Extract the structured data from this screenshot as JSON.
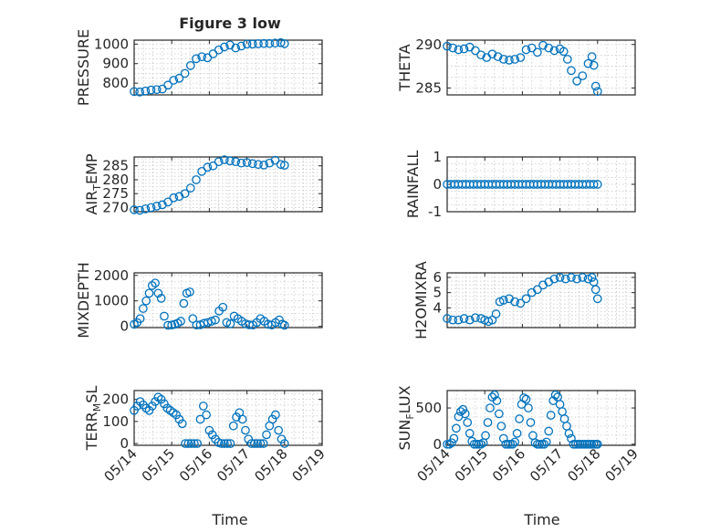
{
  "figure": {
    "title": "Figure 3 low",
    "xlabel": "Time",
    "x_tick_labels": [
      "05/14",
      "05/15",
      "05/16",
      "05/17",
      "05/18",
      "05/19"
    ]
  },
  "colors": {
    "marker": "#0072bd",
    "axes": "#262626",
    "grid": "#c8c8c8"
  },
  "chart_data": [
    {
      "type": "scatter",
      "ylabel": "PRESSURE",
      "ylim": [
        740,
        1020
      ],
      "yticks": [
        800,
        900,
        1000
      ],
      "ytick_labels": [
        "800",
        "900",
        "1000"
      ],
      "grid": true,
      "xlim": [
        "05/14",
        "05/19"
      ],
      "x": [
        14.0,
        14.15,
        14.3,
        14.45,
        14.6,
        14.75,
        14.9,
        15.05,
        15.2,
        15.35,
        15.5,
        15.65,
        15.8,
        15.95,
        16.1,
        16.25,
        16.4,
        16.55,
        16.7,
        16.85,
        17.0,
        17.15,
        17.3,
        17.45,
        17.6,
        17.75,
        17.9,
        18.0
      ],
      "y": [
        757,
        755,
        760,
        765,
        767,
        770,
        790,
        815,
        825,
        850,
        890,
        925,
        935,
        930,
        950,
        970,
        985,
        995,
        980,
        990,
        1000,
        1000,
        1002,
        1003,
        1003,
        1005,
        1007,
        1002
      ]
    },
    {
      "type": "scatter",
      "ylabel": "THETA",
      "ylim": [
        284.2,
        290.5
      ],
      "yticks": [
        285,
        290
      ],
      "ytick_labels": [
        "285",
        "290"
      ],
      "grid": true,
      "xlim": [
        "05/14",
        "05/19"
      ],
      "x": [
        14.0,
        14.15,
        14.3,
        14.45,
        14.6,
        14.75,
        14.9,
        15.05,
        15.2,
        15.35,
        15.5,
        15.65,
        15.8,
        15.95,
        16.1,
        16.25,
        16.4,
        16.55,
        16.7,
        16.85,
        17.0,
        17.1,
        17.2,
        17.3,
        17.45,
        17.6,
        17.75,
        17.85,
        17.9,
        17.95,
        18.0
      ],
      "y": [
        289.8,
        289.6,
        289.4,
        289.5,
        289.7,
        289.3,
        288.8,
        288.5,
        288.9,
        288.6,
        288.3,
        288.2,
        288.3,
        288.5,
        289.4,
        289.6,
        289.1,
        289.9,
        289.6,
        289.3,
        289.5,
        289.2,
        288.3,
        287.0,
        285.8,
        286.4,
        287.8,
        288.6,
        287.6,
        285.2,
        284.6
      ]
    },
    {
      "type": "scatter",
      "ylabel": "AIR_TEMP",
      "ylim": [
        268.5,
        288.2
      ],
      "yticks": [
        270,
        275,
        280,
        285
      ],
      "ytick_labels": [
        "270",
        "275",
        "280",
        "285"
      ],
      "grid": true,
      "xlim": [
        "05/14",
        "05/19"
      ],
      "x": [
        14.0,
        14.15,
        14.3,
        14.45,
        14.6,
        14.75,
        14.9,
        15.05,
        15.2,
        15.35,
        15.5,
        15.65,
        15.8,
        15.95,
        16.1,
        16.25,
        16.4,
        16.55,
        16.7,
        16.85,
        17.0,
        17.15,
        17.3,
        17.45,
        17.6,
        17.75,
        17.9,
        18.0
      ],
      "y": [
        269.2,
        269.0,
        269.5,
        270.0,
        270.5,
        271.0,
        272.0,
        273.5,
        274.0,
        275.0,
        277.0,
        280.0,
        283.0,
        284.5,
        285.0,
        286.5,
        287.2,
        286.8,
        286.5,
        286.0,
        286.2,
        285.8,
        285.5,
        285.3,
        286.0,
        287.0,
        285.5,
        285.2
      ]
    },
    {
      "type": "scatter",
      "ylabel": "RAINFALL",
      "ylim": [
        -1,
        1
      ],
      "yticks": [
        -1,
        0,
        1
      ],
      "ytick_labels": [
        "-1",
        "0",
        "1"
      ],
      "grid": true,
      "xlim": [
        "05/14",
        "05/19"
      ],
      "x": [
        14.0,
        14.1,
        14.2,
        14.3,
        14.4,
        14.5,
        14.6,
        14.7,
        14.8,
        14.9,
        15.0,
        15.1,
        15.2,
        15.3,
        15.4,
        15.5,
        15.6,
        15.7,
        15.8,
        15.9,
        16.0,
        16.1,
        16.2,
        16.3,
        16.4,
        16.5,
        16.6,
        16.7,
        16.8,
        16.9,
        17.0,
        17.1,
        17.2,
        17.3,
        17.4,
        17.5,
        17.6,
        17.7,
        17.8,
        17.9,
        18.0
      ],
      "y": [
        0,
        0,
        0,
        0,
        0,
        0,
        0,
        0,
        0,
        0,
        0,
        0,
        0,
        0,
        0,
        0,
        0,
        0,
        0,
        0,
        0,
        0,
        0,
        0,
        0,
        0,
        0,
        0,
        0,
        0,
        0,
        0,
        0,
        0,
        0,
        0,
        0,
        0,
        0,
        0,
        0
      ]
    },
    {
      "type": "scatter",
      "ylabel": "MIXDEPTH",
      "ylim": [
        -50,
        2100
      ],
      "yticks": [
        0,
        1000,
        2000
      ],
      "ytick_labels": [
        "0",
        "1000",
        "2000"
      ],
      "grid": true,
      "xlim": [
        "05/14",
        "05/19"
      ],
      "x": [
        14.0,
        14.08,
        14.16,
        14.24,
        14.32,
        14.4,
        14.48,
        14.56,
        14.64,
        14.72,
        14.8,
        14.9,
        15.0,
        15.08,
        15.16,
        15.24,
        15.32,
        15.4,
        15.48,
        15.56,
        15.66,
        15.76,
        15.86,
        15.96,
        16.06,
        16.16,
        16.26,
        16.36,
        16.46,
        16.56,
        16.66,
        16.76,
        16.86,
        16.96,
        17.06,
        17.16,
        17.26,
        17.36,
        17.46,
        17.56,
        17.66,
        17.76,
        17.86,
        17.94,
        18.0
      ],
      "y": [
        80,
        150,
        300,
        700,
        1000,
        1300,
        1600,
        1700,
        1300,
        1100,
        400,
        40,
        50,
        80,
        120,
        200,
        900,
        1300,
        1350,
        300,
        50,
        60,
        120,
        150,
        200,
        250,
        600,
        750,
        150,
        100,
        400,
        300,
        200,
        100,
        60,
        50,
        150,
        300,
        200,
        80,
        50,
        150,
        250,
        80,
        40
      ]
    },
    {
      "type": "scatter",
      "ylabel": "H2OMIXRA",
      "ylim": [
        2.7,
        6.3
      ],
      "yticks": [
        4,
        5,
        6
      ],
      "ytick_labels": [
        "4",
        "5",
        "6"
      ],
      "grid": true,
      "xlim": [
        "05/14",
        "05/19"
      ],
      "x": [
        14.0,
        14.15,
        14.3,
        14.45,
        14.6,
        14.75,
        14.9,
        15.0,
        15.1,
        15.2,
        15.3,
        15.4,
        15.5,
        15.65,
        15.8,
        15.95,
        16.1,
        16.25,
        16.4,
        16.55,
        16.7,
        16.85,
        17.0,
        17.15,
        17.3,
        17.45,
        17.6,
        17.75,
        17.85,
        17.9,
        17.95,
        18.0
      ],
      "y": [
        3.3,
        3.2,
        3.2,
        3.3,
        3.2,
        3.35,
        3.3,
        3.2,
        3.1,
        3.2,
        3.6,
        4.4,
        4.5,
        4.6,
        4.4,
        4.3,
        4.6,
        5.0,
        5.2,
        5.5,
        5.7,
        5.9,
        6.0,
        5.9,
        6.0,
        5.9,
        6.0,
        5.9,
        6.0,
        5.7,
        5.2,
        4.6
      ]
    },
    {
      "type": "scatter",
      "ylabel": "TERR_MSL",
      "ylim": [
        -8,
        240
      ],
      "yticks": [
        0,
        100,
        200
      ],
      "ytick_labels": [
        "0",
        "100",
        "200"
      ],
      "grid": true,
      "xlim": [
        "05/14",
        "05/19"
      ],
      "x": [
        14.0,
        14.08,
        14.16,
        14.24,
        14.32,
        14.4,
        14.48,
        14.56,
        14.64,
        14.72,
        14.8,
        14.88,
        14.96,
        15.04,
        15.12,
        15.2,
        15.28,
        15.36,
        15.44,
        15.52,
        15.6,
        15.68,
        15.76,
        15.84,
        15.92,
        16.0,
        16.08,
        16.16,
        16.24,
        16.32,
        16.4,
        16.48,
        16.56,
        16.64,
        16.72,
        16.8,
        16.88,
        16.96,
        17.04,
        17.12,
        17.2,
        17.28,
        17.36,
        17.44,
        17.52,
        17.6,
        17.68,
        17.76,
        17.84,
        17.92,
        18.0
      ],
      "y": [
        150,
        170,
        190,
        175,
        160,
        150,
        170,
        190,
        210,
        200,
        180,
        160,
        150,
        140,
        130,
        110,
        90,
        0,
        0,
        0,
        0,
        0,
        110,
        170,
        130,
        60,
        40,
        20,
        5,
        0,
        0,
        0,
        0,
        80,
        120,
        140,
        110,
        60,
        20,
        0,
        0,
        0,
        0,
        0,
        40,
        80,
        110,
        130,
        60,
        20,
        0
      ]
    },
    {
      "type": "scatter",
      "ylabel": "SUN_FLUX",
      "ylim": [
        -15,
        740
      ],
      "yticks": [
        0,
        500
      ],
      "ytick_labels": [
        "0",
        "500"
      ],
      "grid": true,
      "xlim": [
        "05/14",
        "05/19"
      ],
      "x": [
        14.0,
        14.06,
        14.12,
        14.18,
        14.24,
        14.3,
        14.36,
        14.42,
        14.48,
        14.54,
        14.6,
        14.66,
        14.72,
        14.78,
        14.84,
        14.9,
        14.96,
        15.02,
        15.08,
        15.14,
        15.2,
        15.26,
        15.32,
        15.38,
        15.44,
        15.5,
        15.56,
        15.62,
        15.68,
        15.74,
        15.8,
        15.86,
        15.92,
        15.98,
        16.04,
        16.1,
        16.16,
        16.22,
        16.28,
        16.34,
        16.4,
        16.46,
        16.52,
        16.58,
        16.64,
        16.7,
        16.76,
        16.82,
        16.88,
        16.94,
        17.0,
        17.06,
        17.12,
        17.18,
        17.24,
        17.3,
        17.36,
        17.42,
        17.48,
        17.54,
        17.6,
        17.66,
        17.72,
        17.78,
        17.84,
        17.9,
        17.96,
        18.0
      ],
      "y": [
        0,
        0,
        20,
        80,
        220,
        380,
        450,
        480,
        420,
        300,
        150,
        40,
        0,
        0,
        0,
        0,
        20,
        120,
        300,
        500,
        650,
        680,
        600,
        420,
        250,
        80,
        0,
        0,
        0,
        0,
        30,
        150,
        350,
        550,
        640,
        620,
        500,
        300,
        120,
        20,
        0,
        0,
        0,
        0,
        30,
        180,
        400,
        600,
        680,
        650,
        550,
        450,
        350,
        250,
        150,
        80,
        0,
        0,
        0,
        0,
        0,
        0,
        0,
        0,
        0,
        0,
        0,
        0
      ]
    }
  ]
}
